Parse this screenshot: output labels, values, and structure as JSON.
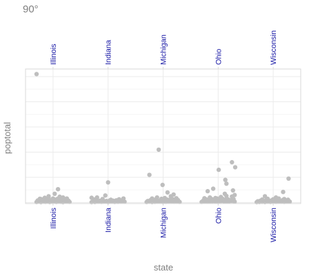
{
  "chart_data": {
    "type": "scatter",
    "title": "90°",
    "xlabel": "state",
    "ylabel": "poptotal",
    "categories": [
      "Illinois",
      "Indiana",
      "Michigan",
      "Ohio",
      "Wisconsin"
    ],
    "ylim": [
      -40000,
      5300000
    ],
    "y_ticks": [
      0,
      1000000,
      2000000,
      3000000,
      4000000,
      5000000
    ],
    "y_tick_labels_shown": false,
    "x_tick_labels_top": true,
    "x_tick_label_rotation": 90,
    "grid": true,
    "point_color": "#bebebe",
    "tick_label_color": "#1a1aa6",
    "series": [
      {
        "category": "Illinois",
        "x_jitter": [
          -0.3,
          -0.26,
          -0.22,
          -0.18,
          -0.14,
          -0.1,
          -0.06,
          -0.02,
          0.02,
          0.06,
          0.1,
          0.14,
          0.18,
          0.22,
          0.26,
          0.3,
          -0.28,
          -0.2,
          -0.12,
          -0.04,
          0.04,
          0.12,
          0.2,
          0.28,
          -0.24,
          -0.16,
          -0.08,
          0.0,
          0.08,
          0.16,
          0.24,
          -0.15,
          -0.08,
          0.03,
          0.12,
          0.18,
          0.25,
          -0.22,
          -0.01,
          0.09,
          -0.3
        ],
        "values": [
          20000,
          35000,
          15000,
          60000,
          25000,
          40000,
          18000,
          30000,
          55000,
          22000,
          45000,
          28000,
          16000,
          50000,
          33000,
          26000,
          80000,
          120000,
          95000,
          70000,
          110000,
          65000,
          90000,
          75000,
          150000,
          135000,
          180000,
          160000,
          145000,
          170000,
          125000,
          190000,
          250000,
          350000,
          230000,
          200000,
          160000,
          140000,
          100000,
          530000,
          5100000
        ]
      },
      {
        "category": "Indiana",
        "x_jitter": [
          -0.3,
          -0.24,
          -0.18,
          -0.12,
          -0.06,
          0.0,
          0.06,
          0.12,
          0.18,
          0.24,
          0.3,
          -0.27,
          -0.21,
          -0.15,
          -0.09,
          -0.03,
          0.03,
          0.09,
          0.15,
          0.21,
          0.27,
          -0.25,
          -0.1,
          0.05,
          0.2,
          -0.2,
          -0.05,
          -0.3,
          0.28,
          0.0
        ],
        "values": [
          15000,
          20000,
          30000,
          25000,
          40000,
          18000,
          35000,
          22000,
          28000,
          45000,
          32000,
          60000,
          55000,
          70000,
          50000,
          65000,
          80000,
          75000,
          90000,
          85000,
          100000,
          120000,
          140000,
          110000,
          130000,
          200000,
          280000,
          190000,
          160000,
          800000
        ]
      },
      {
        "category": "Michigan",
        "x_jitter": [
          -0.3,
          -0.25,
          -0.2,
          -0.15,
          -0.1,
          -0.05,
          0.0,
          0.05,
          0.1,
          0.15,
          0.2,
          0.25,
          0.3,
          -0.28,
          -0.18,
          -0.08,
          0.02,
          0.12,
          0.22,
          -0.23,
          -0.13,
          -0.03,
          0.07,
          0.17,
          0.27,
          -0.2,
          -0.11,
          0.03,
          0.14,
          0.24,
          0.19,
          0.08,
          -0.25,
          -0.01,
          -0.08
        ],
        "values": [
          20000,
          30000,
          18000,
          25000,
          40000,
          35000,
          22000,
          28000,
          45000,
          50000,
          32000,
          38000,
          26000,
          60000,
          80000,
          70000,
          90000,
          110000,
          75000,
          95000,
          130000,
          150000,
          120000,
          140000,
          100000,
          160000,
          200000,
          180000,
          250000,
          170000,
          320000,
          400000,
          1100000,
          700000,
          2100000
        ]
      },
      {
        "category": "Ohio",
        "x_jitter": [
          -0.3,
          -0.25,
          -0.2,
          -0.15,
          -0.1,
          -0.05,
          0.0,
          0.05,
          0.1,
          0.15,
          0.2,
          0.25,
          0.3,
          -0.27,
          -0.17,
          -0.07,
          0.03,
          0.13,
          0.23,
          -0.22,
          -0.12,
          -0.02,
          0.08,
          0.18,
          0.28,
          -0.25,
          -0.15,
          -0.05,
          0.05,
          0.15,
          0.25,
          0.3,
          0.12,
          -0.19,
          -0.09,
          0.15,
          0.27,
          0.13,
          0.01,
          0.31,
          0.25
        ],
        "values": [
          25000,
          40000,
          30000,
          35000,
          55000,
          45000,
          28000,
          60000,
          50000,
          38000,
          42000,
          65000,
          33000,
          80000,
          100000,
          90000,
          120000,
          110000,
          95000,
          130000,
          140000,
          160000,
          150000,
          125000,
          135000,
          170000,
          200000,
          180000,
          220000,
          260000,
          240000,
          300000,
          350000,
          450000,
          550000,
          750000,
          480000,
          900000,
          1300000,
          1400000,
          1600000
        ]
      },
      {
        "category": "Wisconsin",
        "x_jitter": [
          -0.3,
          -0.25,
          -0.2,
          -0.15,
          -0.1,
          -0.05,
          0.0,
          0.05,
          0.1,
          0.15,
          0.2,
          0.25,
          0.3,
          -0.28,
          -0.18,
          -0.08,
          0.02,
          0.12,
          0.22,
          -0.23,
          -0.13,
          -0.03,
          0.07,
          0.17,
          0.27,
          -0.2,
          -0.1,
          0.0,
          0.1,
          0.2,
          0.05,
          -0.15,
          0.18,
          0.28
        ],
        "values": [
          15000,
          20000,
          25000,
          18000,
          30000,
          22000,
          35000,
          28000,
          40000,
          32000,
          26000,
          45000,
          38000,
          50000,
          60000,
          55000,
          70000,
          65000,
          80000,
          75000,
          90000,
          85000,
          100000,
          95000,
          110000,
          120000,
          150000,
          130000,
          160000,
          140000,
          200000,
          250000,
          420000,
          950000
        ]
      }
    ]
  }
}
